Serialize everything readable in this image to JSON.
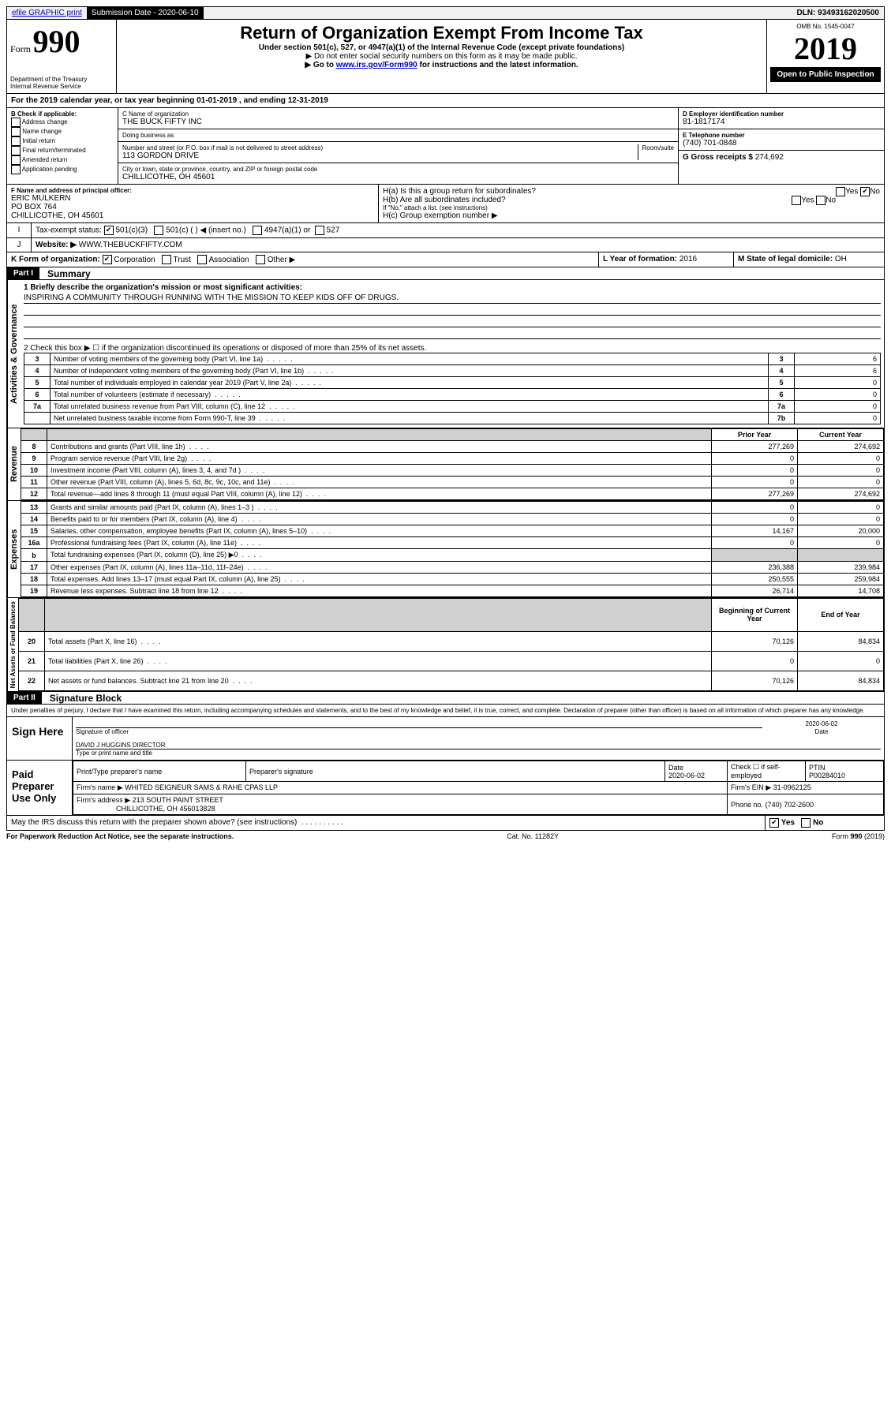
{
  "top": {
    "efile": "efile GRAPHIC print",
    "submission_label": "Submission Date - 2020-06-10",
    "dln": "DLN: 93493162020500"
  },
  "header": {
    "form_label": "Form",
    "form_number": "990",
    "title": "Return of Organization Exempt From Income Tax",
    "subtitle1": "Under section 501(c), 527, or 4947(a)(1) of the Internal Revenue Code (except private foundations)",
    "subtitle2": "▶ Do not enter social security numbers on this form as it may be made public.",
    "subtitle3_prefix": "▶ Go to ",
    "subtitle3_link": "www.irs.gov/Form990",
    "subtitle3_suffix": " for instructions and the latest information.",
    "omb": "OMB No. 1545-0047",
    "year": "2019",
    "open_public": "Open to Public Inspection",
    "dept": "Department of the Treasury\nInternal Revenue Service"
  },
  "lineA": "For the 2019 calendar year, or tax year beginning 01-01-2019   , and ending 12-31-2019",
  "boxB": {
    "label": "B Check if applicable:",
    "items": [
      "Address change",
      "Name change",
      "Initial return",
      "Final return/terminated",
      "Amended return",
      "Application pending"
    ]
  },
  "boxC": {
    "label": "C Name of organization",
    "name": "THE BUCK FIFTY INC",
    "dba_label": "Doing business as",
    "addr_label": "Number and street (or P.O. box if mail is not delivered to street address)",
    "room_label": "Room/suite",
    "addr": "113 GORDON DRIVE",
    "city_label": "City or town, state or province, country, and ZIP or foreign postal code",
    "city": "CHILLICOTHE, OH  45601"
  },
  "boxD": {
    "label": "D Employer identification number",
    "value": "81-1817174"
  },
  "boxE": {
    "label": "E Telephone number",
    "value": "(740) 701-0848"
  },
  "boxF": {
    "label": "F Name and address of principal officer:",
    "name": "ERIC MULKERN",
    "addr1": "PO BOX 764",
    "addr2": "CHILLICOTHE, OH  45601"
  },
  "boxG": {
    "label": "G Gross receipts $",
    "value": "274,692"
  },
  "boxH": {
    "a": "H(a)  Is this a group return for subordinates?",
    "b": "H(b)  Are all subordinates included?",
    "ifno": "If \"No,\" attach a list. (see instructions)",
    "c": "H(c)  Group exemption number ▶"
  },
  "taxExempt": {
    "label": "Tax-exempt status:",
    "opt1": "501(c)(3)",
    "opt2": "501(c) (  ) ◀ (insert no.)",
    "opt3": "4947(a)(1) or",
    "opt4": "527"
  },
  "boxJ": {
    "label": "Website: ▶",
    "value": "WWW.THEBUCKFIFTY.COM"
  },
  "boxK": "K Form of organization:",
  "boxK_opts": [
    "Corporation",
    "Trust",
    "Association",
    "Other ▶"
  ],
  "boxL": {
    "label": "L Year of formation:",
    "value": "2016"
  },
  "boxM": {
    "label": "M State of legal domicile:",
    "value": "OH"
  },
  "part1": {
    "label": "Part I",
    "title": "Summary",
    "line1_label": "1  Briefly describe the organization's mission or most significant activities:",
    "mission": "INSPIRING A COMMUNITY THROUGH RUNNING WITH THE MISSION TO KEEP KIDS OFF OF DRUGS.",
    "line2": "2  Check this box ▶ ☐  if the organization discontinued its operations or disposed of more than 25% of its net assets.",
    "governance_lines": [
      {
        "no": "3",
        "text": "Number of voting members of the governing body (Part VI, line 1a)",
        "box": "3",
        "val": "6"
      },
      {
        "no": "4",
        "text": "Number of independent voting members of the governing body (Part VI, line 1b)",
        "box": "4",
        "val": "6"
      },
      {
        "no": "5",
        "text": "Total number of individuals employed in calendar year 2019 (Part V, line 2a)",
        "box": "5",
        "val": "0"
      },
      {
        "no": "6",
        "text": "Total number of volunteers (estimate if necessary)",
        "box": "6",
        "val": "0"
      },
      {
        "no": "7a",
        "text": "Total unrelated business revenue from Part VIII, column (C), line 12",
        "box": "7a",
        "val": "0"
      },
      {
        "no": "",
        "text": "Net unrelated business taxable income from Form 990-T, line 39",
        "box": "7b",
        "val": "0"
      }
    ],
    "col_prior": "Prior Year",
    "col_current": "Current Year",
    "revenue_lines": [
      {
        "no": "8",
        "text": "Contributions and grants (Part VIII, line 1h)",
        "prior": "277,269",
        "curr": "274,692"
      },
      {
        "no": "9",
        "text": "Program service revenue (Part VIII, line 2g)",
        "prior": "0",
        "curr": "0"
      },
      {
        "no": "10",
        "text": "Investment income (Part VIII, column (A), lines 3, 4, and 7d )",
        "prior": "0",
        "curr": "0"
      },
      {
        "no": "11",
        "text": "Other revenue (Part VIII, column (A), lines 5, 6d, 8c, 9c, 10c, and 11e)",
        "prior": "0",
        "curr": "0"
      },
      {
        "no": "12",
        "text": "Total revenue—add lines 8 through 11 (must equal Part VIII, column (A), line 12)",
        "prior": "277,269",
        "curr": "274,692"
      }
    ],
    "expense_lines": [
      {
        "no": "13",
        "text": "Grants and similar amounts paid (Part IX, column (A), lines 1–3 )",
        "prior": "0",
        "curr": "0"
      },
      {
        "no": "14",
        "text": "Benefits paid to or for members (Part IX, column (A), line 4)",
        "prior": "0",
        "curr": "0"
      },
      {
        "no": "15",
        "text": "Salaries, other compensation, employee benefits (Part IX, column (A), lines 5–10)",
        "prior": "14,167",
        "curr": "20,000"
      },
      {
        "no": "16a",
        "text": "Professional fundraising fees (Part IX, column (A), line 11e)",
        "prior": "0",
        "curr": "0"
      },
      {
        "no": "b",
        "text": "Total fundraising expenses (Part IX, column (D), line 25) ▶0",
        "prior": "",
        "curr": "",
        "shaded": true
      },
      {
        "no": "17",
        "text": "Other expenses (Part IX, column (A), lines 11a–11d, 11f–24e)",
        "prior": "236,388",
        "curr": "239,984"
      },
      {
        "no": "18",
        "text": "Total expenses. Add lines 13–17 (must equal Part IX, column (A), line 25)",
        "prior": "250,555",
        "curr": "259,984"
      },
      {
        "no": "19",
        "text": "Revenue less expenses. Subtract line 18 from line 12",
        "prior": "26,714",
        "curr": "14,708"
      }
    ],
    "col_begin": "Beginning of Current Year",
    "col_end": "End of Year",
    "net_lines": [
      {
        "no": "20",
        "text": "Total assets (Part X, line 16)",
        "prior": "70,126",
        "curr": "84,834"
      },
      {
        "no": "21",
        "text": "Total liabilities (Part X, line 26)",
        "prior": "0",
        "curr": "0"
      },
      {
        "no": "22",
        "text": "Net assets or fund balances. Subtract line 21 from line 20",
        "prior": "70,126",
        "curr": "84,834"
      }
    ]
  },
  "vert_labels": {
    "gov": "Activities & Governance",
    "rev": "Revenue",
    "exp": "Expenses",
    "net": "Net Assets or Fund Balances"
  },
  "part2": {
    "label": "Part II",
    "title": "Signature Block",
    "declaration": "Under penalties of perjury, I declare that I have examined this return, including accompanying schedules and statements, and to the best of my knowledge and belief, it is true, correct, and complete. Declaration of preparer (other than officer) is based on all information of which preparer has any knowledge.",
    "sign_here": "Sign Here",
    "sig_officer": "Signature of officer",
    "sig_date": "2020-06-02",
    "date_label": "Date",
    "officer_name": "DAVID J HUGGINS  DIRECTOR",
    "type_name": "Type or print name and title",
    "paid": "Paid Preparer Use Only",
    "prep_name_label": "Print/Type preparer's name",
    "prep_sig_label": "Preparer's signature",
    "prep_date_label": "Date",
    "prep_date": "2020-06-02",
    "check_self": "Check ☐ if self-employed",
    "ptin_label": "PTIN",
    "ptin": "P00284010",
    "firm_name_label": "Firm's name    ▶",
    "firm_name": "WHITED SEIGNEUR SAMS & RAHE CPAS LLP",
    "firm_ein_label": "Firm's EIN ▶",
    "firm_ein": "31-0962125",
    "firm_addr_label": "Firm's address ▶",
    "firm_addr": "213 SOUTH PAINT STREET",
    "firm_city": "CHILLICOTHE, OH  456013828",
    "phone_label": "Phone no.",
    "phone": "(740) 702-2600",
    "discuss": "May the IRS discuss this return with the preparer shown above? (see instructions)"
  },
  "footer": {
    "paperwork": "For Paperwork Reduction Act Notice, see the separate instructions.",
    "cat": "Cat. No. 11282Y",
    "form": "Form 990 (2019)"
  },
  "yes": "Yes",
  "no": "No"
}
